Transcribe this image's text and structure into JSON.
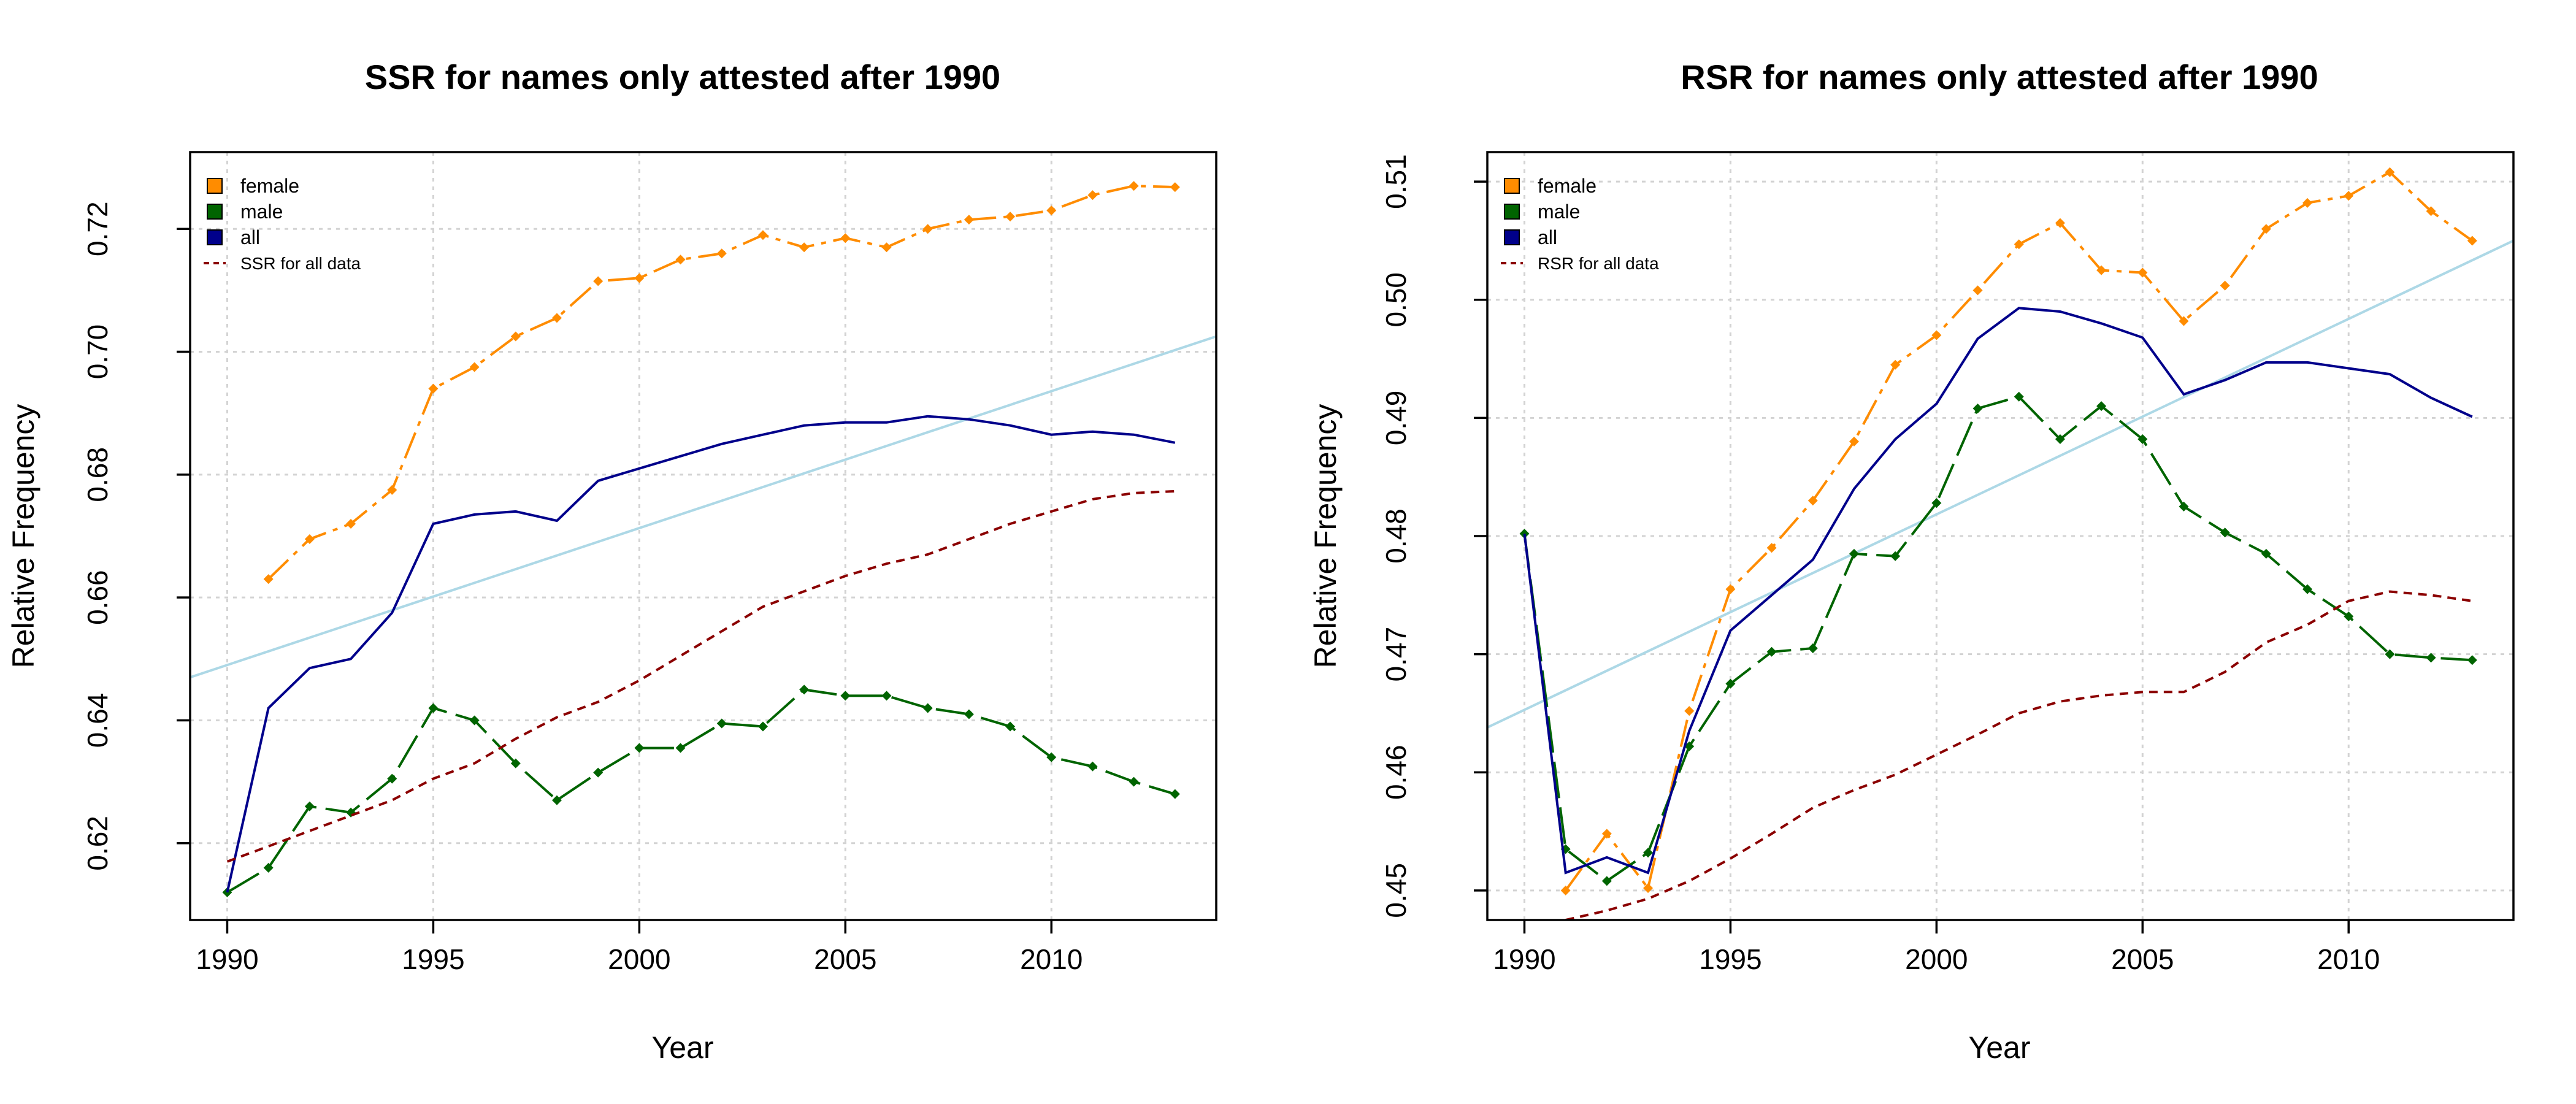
{
  "chart_data": [
    {
      "type": "line",
      "title": "SSR for names only attested after 1990",
      "xlabel": "Year",
      "ylabel": "Relative Frequency",
      "xlim": [
        1989.1,
        2014
      ],
      "ylim": [
        0.6075,
        0.7325
      ],
      "x_ticks": [
        1990,
        1995,
        2000,
        2005,
        2010
      ],
      "y_ticks": [
        0.62,
        0.64,
        0.66,
        0.68,
        0.7,
        0.72
      ],
      "grid": true,
      "legend_position": "top-left",
      "x": [
        1990,
        1991,
        1992,
        1993,
        1994,
        1995,
        1996,
        1997,
        1998,
        1999,
        2000,
        2001,
        2002,
        2003,
        2004,
        2005,
        2006,
        2007,
        2008,
        2009,
        2010,
        2011,
        2012,
        2013
      ],
      "series": [
        {
          "name": "female",
          "color": "#ff8c00",
          "style": "dash-dot-markers",
          "values": [
            null,
            0.663,
            0.6695,
            0.672,
            0.6775,
            0.694,
            0.6975,
            0.7025,
            0.7055,
            0.7115,
            0.712,
            0.715,
            0.716,
            0.719,
            0.717,
            0.7185,
            0.717,
            0.72,
            0.7215,
            0.722,
            0.723,
            0.7255,
            0.727,
            0.7268
          ]
        },
        {
          "name": "male",
          "color": "#006400",
          "style": "long-dash-markers",
          "values": [
            0.612,
            0.616,
            0.626,
            0.625,
            0.6305,
            0.642,
            0.64,
            0.633,
            0.627,
            0.6315,
            0.6355,
            0.6355,
            0.6395,
            0.639,
            0.645,
            0.644,
            0.644,
            0.642,
            0.641,
            0.639,
            0.634,
            0.6325,
            0.63,
            0.628
          ]
        },
        {
          "name": "all",
          "color": "#00008b",
          "style": "solid",
          "values": [
            0.612,
            0.642,
            0.6485,
            0.65,
            0.6575,
            0.672,
            0.6735,
            0.674,
            0.6725,
            0.679,
            0.681,
            0.683,
            0.685,
            0.6865,
            0.688,
            0.6885,
            0.6885,
            0.6895,
            0.689,
            0.688,
            0.6865,
            0.687,
            0.6865,
            0.6852
          ]
        },
        {
          "name": "SSR for all data",
          "color": "#8b0000",
          "style": "dashed",
          "values": [
            0.617,
            0.6195,
            0.622,
            0.6245,
            0.627,
            0.6305,
            0.633,
            0.637,
            0.6405,
            0.643,
            0.6465,
            0.6505,
            0.6545,
            0.6585,
            0.661,
            0.6635,
            0.6655,
            0.667,
            0.6695,
            0.672,
            0.674,
            0.676,
            0.677,
            0.6773
          ]
        }
      ],
      "trend_line": {
        "color": "#add8e6",
        "x": [
          1989.1,
          2014
        ],
        "y": [
          0.647,
          0.7025
        ]
      }
    },
    {
      "type": "line",
      "title": "RSR for names only attested after 1990",
      "xlabel": "Year",
      "ylabel": "Relative Frequency",
      "xlim": [
        1989.1,
        2014
      ],
      "ylim": [
        0.4475,
        0.5125
      ],
      "x_ticks": [
        1990,
        1995,
        2000,
        2005,
        2010
      ],
      "y_ticks": [
        0.45,
        0.46,
        0.47,
        0.48,
        0.49,
        0.5,
        0.51
      ],
      "grid": true,
      "legend_position": "top-left",
      "x": [
        1990,
        1991,
        1992,
        1993,
        1994,
        1995,
        1996,
        1997,
        1998,
        1999,
        2000,
        2001,
        2002,
        2003,
        2004,
        2005,
        2006,
        2007,
        2008,
        2009,
        2010,
        2011,
        2012,
        2013
      ],
      "series": [
        {
          "name": "female",
          "color": "#ff8c00",
          "style": "dash-dot-markers",
          "values": [
            null,
            0.45,
            0.4548,
            0.4502,
            0.4652,
            0.4755,
            0.479,
            0.483,
            0.488,
            0.4945,
            0.497,
            0.5008,
            0.5047,
            0.5065,
            0.5025,
            0.5023,
            0.4982,
            0.5012,
            0.506,
            0.5082,
            0.5088,
            0.5108,
            0.5075,
            0.505
          ]
        },
        {
          "name": "male",
          "color": "#006400",
          "style": "long-dash-markers",
          "values": [
            0.4802,
            0.4535,
            0.4508,
            0.4532,
            0.4622,
            0.4675,
            0.4702,
            0.4705,
            0.4785,
            0.4783,
            0.4828,
            0.4908,
            0.4918,
            0.4882,
            0.491,
            0.4882,
            0.4825,
            0.4803,
            0.4785,
            0.4755,
            0.4732,
            0.47,
            0.4697,
            0.4695
          ]
        },
        {
          "name": "all",
          "color": "#00008b",
          "style": "solid",
          "values": [
            0.4802,
            0.4515,
            0.4528,
            0.4515,
            0.4635,
            0.472,
            0.475,
            0.478,
            0.484,
            0.4882,
            0.4912,
            0.4967,
            0.4993,
            0.499,
            0.498,
            0.4968,
            0.492,
            0.4932,
            0.4947,
            0.4947,
            0.4942,
            0.4937,
            0.4917,
            0.4901
          ]
        },
        {
          "name": "RSR for all data",
          "color": "#8b0000",
          "style": "dashed",
          "values": [
            null,
            0.4475,
            0.4483,
            0.4493,
            0.4508,
            0.4527,
            0.4548,
            0.457,
            0.4585,
            0.4598,
            0.4615,
            0.4632,
            0.465,
            0.466,
            0.4665,
            0.4668,
            0.4668,
            0.4685,
            0.471,
            0.4725,
            0.4745,
            0.4753,
            0.475,
            0.4745
          ]
        }
      ],
      "trend_line": {
        "color": "#add8e6",
        "x": [
          1989.1,
          2014
        ],
        "y": [
          0.4638,
          0.505
        ]
      }
    }
  ]
}
